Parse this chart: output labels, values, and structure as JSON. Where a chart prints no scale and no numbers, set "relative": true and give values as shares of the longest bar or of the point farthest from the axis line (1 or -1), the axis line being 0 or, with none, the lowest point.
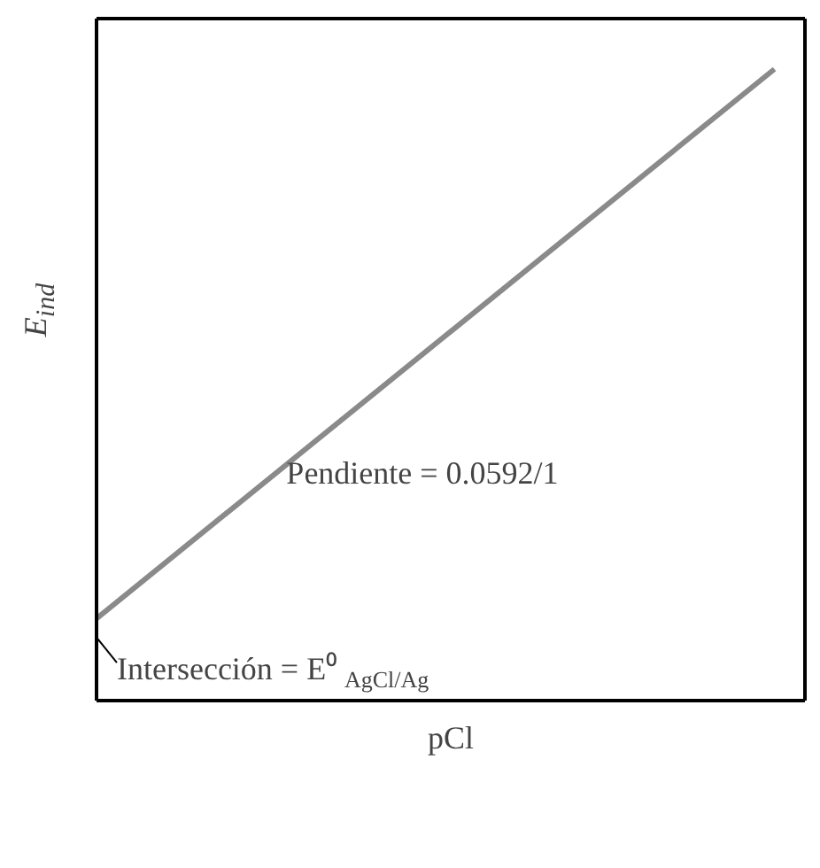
{
  "chart_data": {
    "type": "line",
    "relative": true,
    "xlabel": "pCl",
    "ylabel": "E$_{ind}$",
    "categories": [
      null,
      null
    ],
    "series": [
      {
        "color": "#8a8a8a",
        "values": [
          0.13,
          1
        ]
      }
    ],
    "annotations": [
      "Pendiente = 0.0592/1",
      "Intersección = E⁰$_{AgCl/Ag}$"
    ],
    "grid": false,
    "marker": "none",
    "line_style": "solid"
  }
}
